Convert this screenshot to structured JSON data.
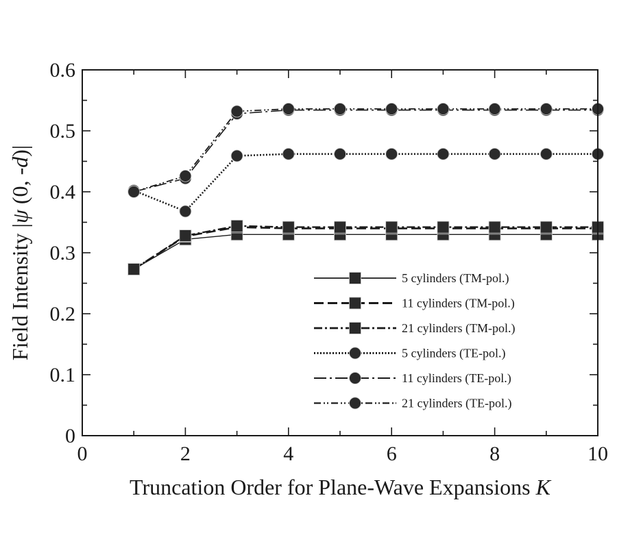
{
  "chart_data": {
    "type": "line",
    "xlabel": "Truncation Order for Plane-Wave Expansions",
    "xlabel_var": "K",
    "ylabel": "Field Intensity |",
    "ylabel_psi": "ψ",
    "ylabel_args": "(0, -",
    "ylabel_d": "d",
    "ylabel_close": ")|",
    "xlim": [
      0,
      10
    ],
    "ylim": [
      0,
      0.6
    ],
    "xticks": [
      0,
      2,
      4,
      6,
      8,
      10
    ],
    "yticks": [
      0,
      0.1,
      0.2,
      0.3,
      0.4,
      0.5,
      0.6
    ],
    "xtick_labels": [
      "0",
      "2",
      "4",
      "6",
      "8",
      "10"
    ],
    "ytick_labels": [
      "0",
      "0.1",
      "0.2",
      "0.3",
      "0.4",
      "0.5",
      "0.6"
    ],
    "legend_position": "lower-right",
    "x": [
      1,
      2,
      3,
      4,
      5,
      6,
      7,
      8,
      9,
      10
    ],
    "series": [
      {
        "name": "5 cylinders (TM-pol.)",
        "marker": "square",
        "dash": "solid",
        "color": "#1a1a1a",
        "values": [
          0.273,
          0.322,
          0.33,
          0.33,
          0.33,
          0.33,
          0.33,
          0.33,
          0.33,
          0.33
        ]
      },
      {
        "name": "11 cylinders (TM-pol.)",
        "marker": "square",
        "dash": "dashed",
        "color": "#1a1a1a",
        "values": [
          0.273,
          0.327,
          0.342,
          0.34,
          0.34,
          0.34,
          0.34,
          0.34,
          0.34,
          0.34
        ]
      },
      {
        "name": "21 cylinders (TM-pol.)",
        "marker": "square",
        "dash": "dashdot",
        "color": "#1a1a1a",
        "values": [
          0.273,
          0.328,
          0.344,
          0.342,
          0.342,
          0.342,
          0.342,
          0.342,
          0.342,
          0.342
        ]
      },
      {
        "name": "5 cylinders (TE-pol.)",
        "marker": "circle",
        "dash": "dotted",
        "color": "#1a1a1a",
        "values": [
          0.402,
          0.368,
          0.459,
          0.462,
          0.462,
          0.462,
          0.462,
          0.462,
          0.462,
          0.462
        ]
      },
      {
        "name": "11 cylinders (TE-pol.)",
        "marker": "circle",
        "dash": "longdashdot",
        "color": "#1a1a1a",
        "values": [
          0.4,
          0.422,
          0.528,
          0.534,
          0.534,
          0.534,
          0.534,
          0.534,
          0.534,
          0.534
        ]
      },
      {
        "name": "21 cylinders (TE-pol.)",
        "marker": "circle",
        "dash": "dashdotdot",
        "color": "#1a1a1a",
        "values": [
          0.4,
          0.426,
          0.532,
          0.536,
          0.536,
          0.536,
          0.536,
          0.536,
          0.536,
          0.536
        ]
      }
    ]
  }
}
